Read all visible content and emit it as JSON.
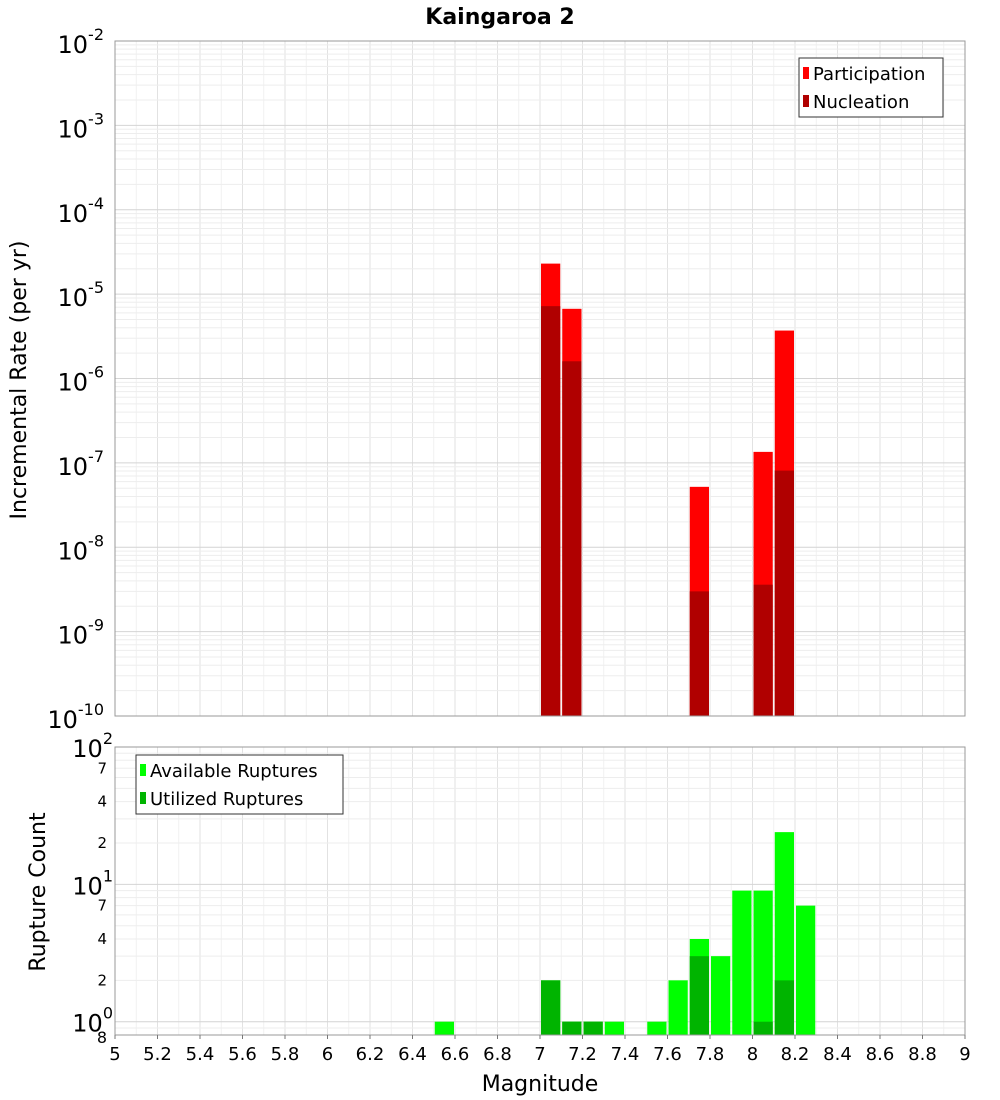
{
  "chart_data": [
    {
      "type": "bar",
      "title": "Kaingaroa 2",
      "ylabel": "Incremental Rate (per yr)",
      "ylog": true,
      "ylim_exp": [
        -10,
        -2
      ],
      "y_ticks": [
        {
          "base": "10",
          "exp": "-2"
        },
        {
          "base": "10",
          "exp": "-3"
        },
        {
          "base": "10",
          "exp": "-4"
        },
        {
          "base": "10",
          "exp": "-5"
        },
        {
          "base": "10",
          "exp": "-6"
        },
        {
          "base": "10",
          "exp": "-7"
        },
        {
          "base": "10",
          "exp": "-8"
        },
        {
          "base": "10",
          "exp": "-9"
        },
        {
          "base": "10",
          "exp": "-10"
        }
      ],
      "grid": true,
      "legend_position": "top-right",
      "series": [
        {
          "name": "Participation",
          "color": "#ff0000",
          "x": [
            7.05,
            7.15,
            7.75,
            8.05,
            8.15
          ],
          "values": [
            2.3e-05,
            6.7e-06,
            5.2e-08,
            1.35e-07,
            3.7e-06
          ]
        },
        {
          "name": "Nucleation",
          "color": "#b00000",
          "x": [
            7.05,
            7.15,
            7.75,
            8.05,
            8.15
          ],
          "values": [
            7.2e-06,
            1.6e-06,
            3e-09,
            3.6e-09,
            8.1e-08
          ]
        }
      ]
    },
    {
      "type": "bar",
      "xlabel": "Magnitude",
      "ylabel": "Rupture Count",
      "ylog": true,
      "ylim": [
        0.8,
        100
      ],
      "x_ticks": [
        "5",
        "5.2",
        "5.4",
        "5.6",
        "5.8",
        "6",
        "6.2",
        "6.4",
        "6.6",
        "6.8",
        "7",
        "7.2",
        "7.4",
        "7.6",
        "7.8",
        "8",
        "8.2",
        "8.4",
        "8.6",
        "8.8",
        "9"
      ],
      "xlim": [
        5,
        9
      ],
      "major_ticks": [
        {
          "base": "10",
          "exp": "2"
        },
        {
          "base": "10",
          "exp": "1"
        },
        {
          "base": "10",
          "exp": "0"
        }
      ],
      "minor_ticks": [
        "7",
        "4",
        "2",
        "7",
        "4",
        "2"
      ],
      "bottom_label": "8",
      "grid": true,
      "legend_position": "top-left",
      "series": [
        {
          "name": "Available Ruptures",
          "color": "#00ff00",
          "x": [
            6.55,
            7.05,
            7.15,
            7.25,
            7.35,
            7.55,
            7.65,
            7.75,
            7.85,
            7.95,
            8.05,
            8.15,
            8.25
          ],
          "values": [
            1,
            2,
            1,
            1,
            1,
            1,
            2,
            4,
            3,
            9,
            9,
            24,
            7
          ]
        },
        {
          "name": "Utilized Ruptures",
          "color": "#00b400",
          "x": [
            7.05,
            7.15,
            7.25,
            7.75,
            8.05,
            8.15
          ],
          "values": [
            2,
            1,
            1,
            3,
            1,
            2
          ]
        }
      ]
    }
  ]
}
